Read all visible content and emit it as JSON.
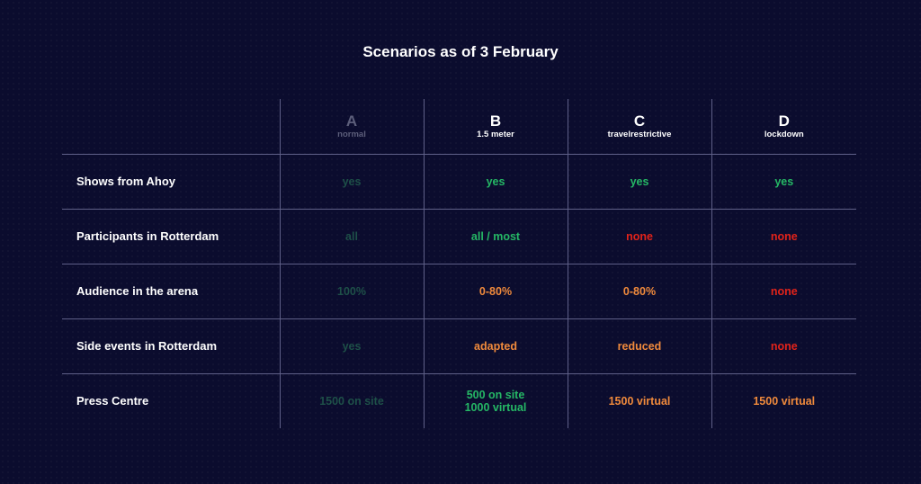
{
  "title": "Scenarios as of 3 February",
  "scenarios": [
    {
      "letter": "A",
      "label": "normal"
    },
    {
      "letter": "B",
      "label": "1.5 meter"
    },
    {
      "letter": "C",
      "label": "travelrestrictive"
    },
    {
      "letter": "D",
      "label": "lockdown"
    }
  ],
  "rows": [
    {
      "label": "Shows from Ahoy",
      "values": [
        "yes",
        "yes",
        "yes",
        "yes"
      ]
    },
    {
      "label": "Participants in Rotterdam",
      "values": [
        "all",
        "all / most",
        "none",
        "none"
      ]
    },
    {
      "label": "Audience in the arena",
      "values": [
        "100%",
        "0-80%",
        "0-80%",
        "none"
      ]
    },
    {
      "label": "Side events in Rotterdam",
      "values": [
        "yes",
        "adapted",
        "reduced",
        "none"
      ]
    },
    {
      "label": "Press Centre",
      "values": [
        "1500 on site",
        [
          "500 on site",
          "1000 virtual"
        ],
        "1500 virtual",
        "1500 virtual"
      ]
    }
  ],
  "colors": {
    "background": "#0b0c2e",
    "dimmed_scenario_a": "#1e5048",
    "positive": "#25b865",
    "restricted": "#f08a3c",
    "none": "#e2231a"
  }
}
